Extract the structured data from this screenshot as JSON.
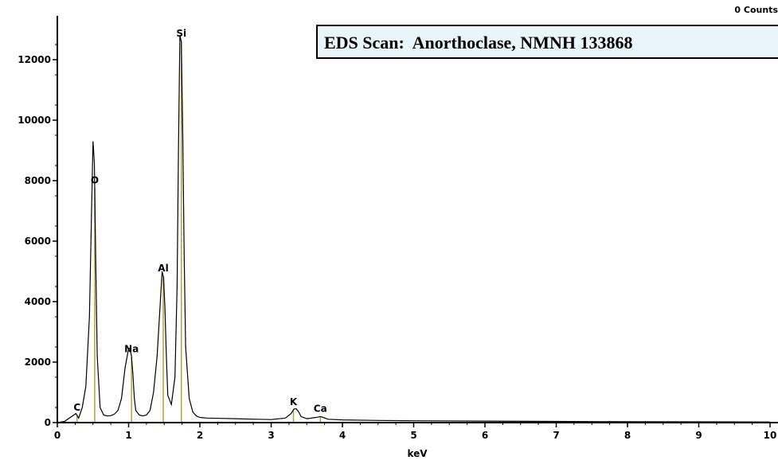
{
  "chart_data": {
    "type": "line",
    "title": "EDS Scan:  Anorthoclase, NMNH 133868",
    "counts_readout": "0 Counts",
    "xlabel": "keV",
    "ylabel": "",
    "xlim": [
      0,
      10
    ],
    "ylim": [
      0,
      13000
    ],
    "xticks": [
      "0",
      "1",
      "2",
      "3",
      "4",
      "5",
      "6",
      "7",
      "8",
      "9",
      "10"
    ],
    "yticks": [
      "0",
      "2000",
      "4000",
      "6000",
      "8000",
      "10000",
      "12000"
    ],
    "grid": false,
    "series": [
      {
        "x": [
          0.0,
          0.1,
          0.2,
          0.26,
          0.3,
          0.35,
          0.4,
          0.45,
          0.48,
          0.5,
          0.52,
          0.54,
          0.56,
          0.6,
          0.65,
          0.7,
          0.75,
          0.8,
          0.85,
          0.9,
          0.95,
          1.0,
          1.02,
          1.04,
          1.06,
          1.08,
          1.1,
          1.15,
          1.2,
          1.25,
          1.3,
          1.35,
          1.4,
          1.45,
          1.47,
          1.49,
          1.51,
          1.53,
          1.55,
          1.6,
          1.65,
          1.68,
          1.7,
          1.72,
          1.74,
          1.76,
          1.78,
          1.8,
          1.85,
          1.9,
          1.95,
          2.0,
          2.1,
          2.3,
          2.5,
          2.8,
          3.0,
          3.2,
          3.28,
          3.32,
          3.35,
          3.38,
          3.42,
          3.5,
          3.6,
          3.65,
          3.69,
          3.73,
          3.8,
          4.0,
          4.5,
          5.0,
          6.0,
          7.0,
          8.0,
          9.0,
          10.0
        ],
        "values": [
          0,
          40,
          200,
          300,
          150,
          500,
          1200,
          3500,
          7000,
          9300,
          8600,
          5200,
          2200,
          500,
          250,
          220,
          230,
          280,
          400,
          800,
          1800,
          2450,
          2450,
          2200,
          1600,
          800,
          400,
          250,
          220,
          250,
          400,
          1000,
          2200,
          4200,
          5000,
          4800,
          3800,
          2200,
          900,
          600,
          1500,
          4500,
          9000,
          12800,
          12600,
          9500,
          5500,
          2500,
          800,
          350,
          220,
          170,
          150,
          140,
          130,
          110,
          100,
          150,
          300,
          450,
          460,
          380,
          200,
          130,
          160,
          180,
          200,
          170,
          110,
          90,
          70,
          60,
          50,
          40,
          30,
          25,
          20
        ]
      }
    ],
    "peaks": [
      {
        "label": "C",
        "x": 0.277
      },
      {
        "label": "O",
        "x": 0.525
      },
      {
        "label": "Na",
        "x": 1.041
      },
      {
        "label": "Al",
        "x": 1.486
      },
      {
        "label": "Si",
        "x": 1.74
      },
      {
        "label": "K",
        "x": 3.313
      },
      {
        "label": "Ca",
        "x": 3.69
      }
    ]
  }
}
